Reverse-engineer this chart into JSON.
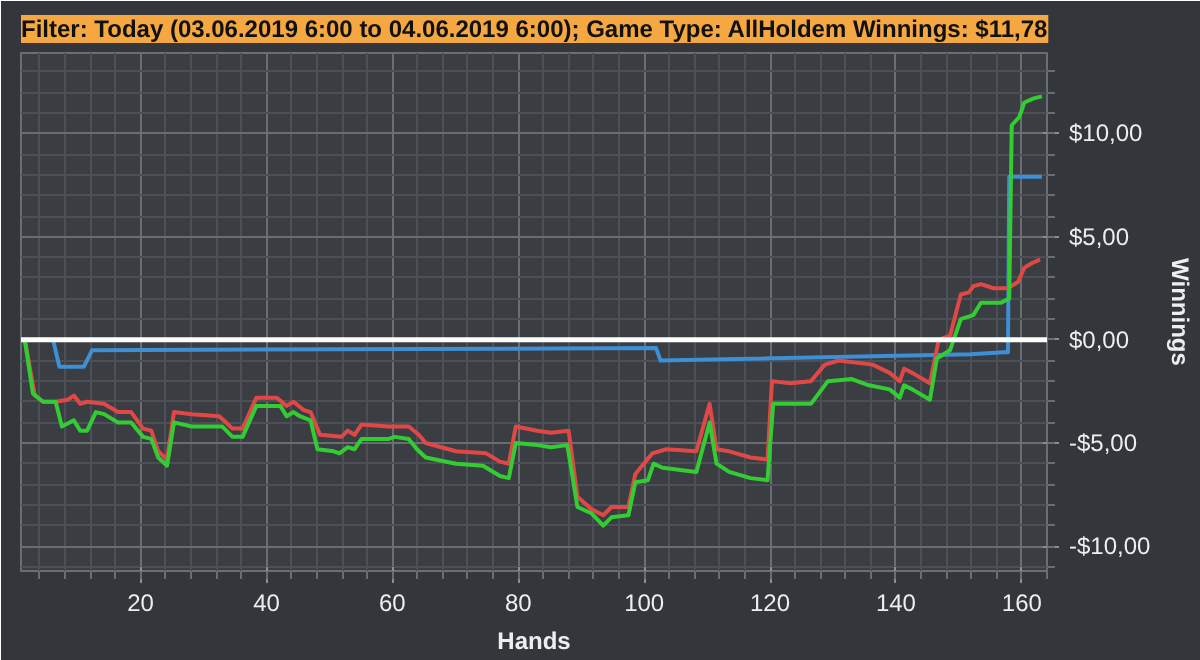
{
  "chart_data": {
    "type": "line",
    "title": "Filter: Today (03.06.2019 6:00 to 04.06.2019 6:00); Game Type: AllHoldem Winnings: $11,78",
    "xlabel": "Hands",
    "ylabel": "Winnings",
    "xlim": [
      1,
      164
    ],
    "xticks": [
      20,
      40,
      60,
      80,
      100,
      120,
      140,
      160
    ],
    "ylim": [
      -11.2,
      13.9
    ],
    "yticks": [
      {
        "value": -10,
        "label": "-$10,00"
      },
      {
        "value": -5,
        "label": "-$5,00"
      },
      {
        "value": 0,
        "label": "$0,00"
      },
      {
        "value": 5,
        "label": "$5,00"
      },
      {
        "value": 10,
        "label": "$10,00"
      }
    ],
    "grid": true,
    "tick_labels": true,
    "line_style": "solid",
    "marker": "none",
    "ref_lines": [
      {
        "axis": "y",
        "value": 0,
        "color": "#ffffff"
      }
    ],
    "series": [
      {
        "color": "#3d8fd6",
        "x": [
          1.6,
          6.1,
          7.1,
          11,
          12.3,
          101.9,
          102.6,
          151.9,
          157.1,
          157.8,
          158,
          163.2
        ],
        "values": [
          0,
          0,
          -1.3,
          -1.3,
          -0.5,
          -0.4,
          -1.0,
          -0.7,
          -0.6,
          -0.6,
          7.9,
          7.9
        ]
      },
      {
        "color": "#e04848",
        "x": [
          1.6,
          3.2,
          4.5,
          6.5,
          8.4,
          9.4,
          10.4,
          11.5,
          14.2,
          16.4,
          18.5,
          20.4,
          21.7,
          22.8,
          24.2,
          25.3,
          28.1,
          32.5,
          34.6,
          36.2,
          38.4,
          41.6,
          43.2,
          44.3,
          45.9,
          47,
          48.5,
          51.9,
          52.9,
          54,
          55.1,
          59.4,
          62.6,
          64.2,
          65.3,
          70.1,
          74.9,
          77.1,
          78.5,
          79.6,
          83,
          85.2,
          88,
          89.4,
          91.6,
          93.5,
          94.8,
          97.5,
          98.6,
          101.3,
          103.5,
          108.3,
          110.4,
          111.5,
          113.5,
          116.9,
          119.6,
          120.3,
          123.2,
          126.5,
          128.7,
          130.9,
          136.3,
          139,
          140.6,
          141.3,
          142.6,
          145.4,
          146.8,
          148.6,
          150.3,
          151.6,
          152.3,
          153.5,
          155.5,
          157.7,
          159.4,
          160.4,
          161.5,
          162.9
        ],
        "values": [
          0,
          -2.7,
          -3.0,
          -3.0,
          -2.9,
          -2.7,
          -3.1,
          -3.0,
          -3.1,
          -3.5,
          -3.5,
          -4.3,
          -4.4,
          -5.4,
          -5.8,
          -3.5,
          -3.6,
          -3.7,
          -4.3,
          -4.3,
          -2.8,
          -2.8,
          -3.2,
          -3.0,
          -3.4,
          -3.5,
          -4.6,
          -4.7,
          -4.4,
          -4.6,
          -4.1,
          -4.2,
          -4.2,
          -4.6,
          -5.0,
          -5.4,
          -5.5,
          -5.9,
          -6.0,
          -4.2,
          -4.4,
          -4.5,
          -4.4,
          -7.6,
          -8.2,
          -8.5,
          -8.1,
          -8.1,
          -6.5,
          -5.5,
          -5.3,
          -5.4,
          -3.1,
          -5.3,
          -5.4,
          -5.7,
          -5.8,
          -2.0,
          -2.1,
          -2.0,
          -1.2,
          -1.0,
          -1.2,
          -1.6,
          -2.0,
          -1.4,
          -1.6,
          -2.1,
          0,
          0.2,
          2.2,
          2.3,
          2.6,
          2.7,
          2.5,
          2.5,
          2.8,
          3.5,
          3.7,
          3.9
        ]
      },
      {
        "color": "#33cc33",
        "x": [
          1.6,
          2.9,
          4.5,
          6.5,
          7.5,
          9.4,
          10.4,
          11.5,
          12.9,
          14.2,
          16.4,
          18.5,
          20.4,
          21.7,
          22.8,
          24.2,
          25.3,
          28.1,
          33,
          34.6,
          36.2,
          38.4,
          42.2,
          43.2,
          44.3,
          45.3,
          47,
          48.1,
          50.7,
          51.6,
          52.9,
          54,
          55.1,
          59.4,
          60.4,
          62.6,
          63.9,
          65.3,
          70.1,
          74.4,
          77.1,
          78.5,
          79.6,
          83,
          85.2,
          87.8,
          89.4,
          91.6,
          93.5,
          94.8,
          97.5,
          98.6,
          100.6,
          101.5,
          102.9,
          108.3,
          110.4,
          111.5,
          113.5,
          116.9,
          119.6,
          120.5,
          126.5,
          129.2,
          133,
          135.7,
          139,
          140.6,
          141.3,
          142.6,
          145.4,
          146.5,
          148.6,
          150.3,
          152.3,
          153.5,
          156.7,
          158,
          158.4,
          159.6,
          160.4,
          161.9,
          163.2
        ],
        "values": [
          0,
          -2.6,
          -3.0,
          -3.0,
          -4.2,
          -3.9,
          -4.4,
          -4.4,
          -3.5,
          -3.6,
          -4.0,
          -4.0,
          -4.7,
          -4.8,
          -5.7,
          -6.1,
          -4.0,
          -4.2,
          -4.2,
          -4.7,
          -4.7,
          -3.2,
          -3.2,
          -3.7,
          -3.5,
          -3.7,
          -3.9,
          -5.3,
          -5.4,
          -5.5,
          -5.2,
          -5.3,
          -4.8,
          -4.8,
          -4.7,
          -4.8,
          -5.3,
          -5.7,
          -6.0,
          -6.1,
          -6.6,
          -6.7,
          -5.0,
          -5.1,
          -5.2,
          -5.1,
          -8.1,
          -8.4,
          -9.0,
          -8.6,
          -8.5,
          -6.9,
          -6.8,
          -6.0,
          -6.2,
          -6.4,
          -4.0,
          -6.0,
          -6.4,
          -6.7,
          -6.8,
          -3.1,
          -3.1,
          -2.0,
          -1.9,
          -2.2,
          -2.4,
          -2.8,
          -2.2,
          -2.4,
          -2.9,
          -0.9,
          -0.5,
          1.0,
          1.2,
          1.8,
          1.8,
          2.0,
          10.4,
          10.8,
          11.5,
          11.7,
          11.8
        ]
      }
    ]
  }
}
